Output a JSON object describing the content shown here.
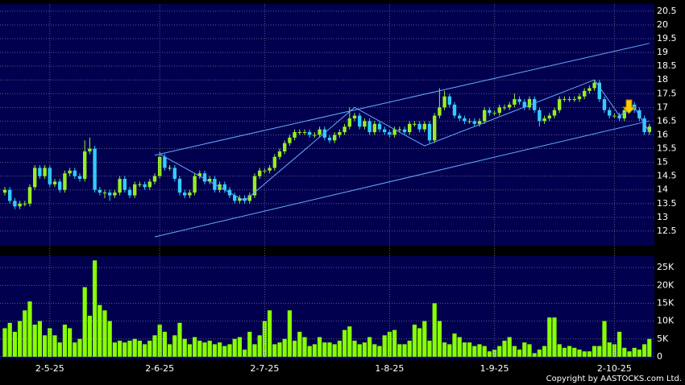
{
  "chart_data": [
    {
      "type": "candlestick",
      "up_color": "#99ee22",
      "down_color": "#33ccff",
      "line_color": "#66aaff",
      "ylim": [
        11.97,
        20.76
      ],
      "yticks": [
        12.5,
        13,
        13.5,
        14,
        14.5,
        15,
        15.5,
        16,
        16.5,
        17,
        17.5,
        18,
        18.5,
        19,
        19.5,
        20,
        20.5
      ],
      "grid": true,
      "open": [
        13.9,
        14.0,
        13.6,
        13.4,
        13.5,
        13.5,
        14.1,
        14.8,
        14.5,
        14.8,
        14.2,
        14.3,
        14.0,
        14.6,
        14.7,
        14.5,
        14.4,
        15.4,
        15.5,
        14.0,
        13.9,
        13.9,
        13.8,
        13.9,
        14.4,
        14.0,
        13.8,
        14.2,
        14.2,
        14.1,
        14.3,
        14.5,
        15.2,
        14.8,
        14.8,
        14.4,
        13.9,
        13.8,
        13.9,
        14.5,
        14.6,
        14.3,
        14.4,
        14.0,
        14.2,
        14.0,
        13.8,
        13.6,
        13.7,
        13.6,
        13.8,
        14.5,
        14.7,
        14.7,
        14.8,
        15.2,
        15.4,
        15.7,
        15.9,
        16.1,
        16.1,
        16.1,
        16.0,
        16.0,
        16.2,
        15.9,
        15.8,
        16.0,
        16.1,
        16.3,
        16.6,
        16.7,
        16.3,
        16.5,
        16.1,
        16.4,
        16.2,
        16.1,
        16.0,
        16.2,
        16.2,
        16.1,
        16.4,
        16.4,
        16.2,
        16.4,
        15.8,
        16.7,
        17.0,
        17.4,
        17.1,
        16.7,
        16.6,
        16.5,
        16.5,
        16.4,
        16.5,
        16.9,
        16.8,
        16.8,
        17.0,
        17.0,
        17.1,
        17.3,
        17.2,
        17.0,
        17.3,
        16.9,
        16.5,
        16.6,
        16.7,
        16.9,
        17.3,
        17.3,
        17.3,
        17.3,
        17.4,
        17.6,
        17.7,
        17.9,
        17.3,
        16.9,
        16.7,
        16.7,
        16.6,
        16.9,
        17.1,
        16.9,
        16.6,
        16.1
      ],
      "high": [
        14.1,
        14.1,
        13.7,
        13.6,
        13.6,
        14.2,
        14.9,
        14.9,
        14.9,
        14.9,
        14.4,
        14.4,
        14.7,
        14.8,
        14.8,
        14.6,
        15.8,
        15.9,
        15.6,
        14.1,
        14.0,
        14.0,
        14.0,
        14.5,
        14.5,
        14.1,
        14.3,
        14.3,
        14.3,
        14.4,
        14.6,
        15.4,
        15.3,
        14.9,
        14.9,
        14.5,
        14.0,
        14.0,
        14.6,
        14.7,
        14.7,
        14.5,
        14.5,
        14.3,
        14.3,
        14.1,
        13.9,
        13.8,
        13.8,
        13.9,
        14.6,
        14.8,
        14.8,
        14.9,
        15.3,
        15.5,
        15.8,
        16.0,
        16.2,
        16.2,
        16.2,
        16.2,
        16.1,
        16.3,
        16.3,
        16.0,
        16.1,
        16.2,
        16.4,
        17.0,
        16.8,
        16.8,
        16.6,
        16.6,
        16.5,
        16.5,
        16.3,
        16.2,
        16.3,
        16.3,
        16.3,
        16.5,
        16.5,
        16.5,
        16.5,
        16.5,
        16.8,
        17.7,
        17.6,
        17.5,
        17.2,
        16.8,
        16.7,
        16.6,
        16.6,
        16.6,
        17.0,
        17.0,
        16.9,
        17.1,
        17.1,
        17.2,
        17.5,
        17.4,
        17.3,
        17.4,
        17.4,
        17.0,
        16.7,
        16.8,
        17.0,
        17.4,
        17.4,
        17.4,
        17.4,
        17.5,
        17.7,
        17.8,
        18.0,
        18.0,
        17.4,
        17.0,
        16.8,
        16.8,
        17.0,
        17.2,
        17.2,
        17.0,
        16.7,
        16.4
      ],
      "low": [
        13.8,
        13.5,
        13.3,
        13.3,
        13.4,
        13.4,
        14.0,
        14.4,
        14.4,
        14.1,
        14.1,
        13.9,
        13.9,
        14.5,
        14.4,
        14.3,
        14.3,
        15.3,
        13.9,
        13.8,
        13.7,
        13.6,
        13.7,
        13.8,
        13.9,
        13.7,
        13.7,
        14.1,
        14.0,
        14.0,
        14.2,
        14.4,
        14.7,
        14.7,
        14.3,
        13.8,
        13.7,
        13.7,
        13.8,
        14.4,
        14.2,
        14.2,
        13.9,
        13.9,
        13.9,
        13.7,
        13.5,
        13.5,
        13.5,
        13.5,
        13.7,
        14.4,
        14.6,
        14.6,
        14.7,
        15.1,
        15.3,
        15.6,
        15.8,
        16.0,
        16.0,
        15.9,
        15.9,
        15.9,
        15.8,
        15.7,
        15.7,
        15.9,
        16.0,
        16.2,
        16.5,
        16.2,
        16.2,
        16.0,
        16.0,
        16.1,
        16.0,
        15.9,
        15.9,
        16.1,
        16.0,
        16.0,
        16.3,
        16.1,
        16.1,
        15.7,
        15.7,
        16.6,
        16.9,
        17.0,
        16.6,
        16.5,
        16.4,
        16.4,
        16.3,
        16.3,
        16.4,
        16.7,
        16.7,
        16.7,
        16.9,
        16.9,
        17.0,
        17.1,
        16.9,
        16.9,
        16.8,
        16.3,
        16.4,
        16.5,
        16.6,
        16.8,
        17.2,
        17.2,
        17.2,
        17.2,
        17.3,
        17.5,
        17.6,
        17.2,
        16.8,
        16.6,
        16.6,
        16.5,
        16.5,
        16.8,
        16.8,
        16.5,
        16.0,
        16.0
      ],
      "close": [
        14.0,
        13.6,
        13.4,
        13.5,
        13.5,
        14.1,
        14.8,
        14.5,
        14.8,
        14.2,
        14.3,
        14.0,
        14.6,
        14.7,
        14.5,
        14.4,
        15.4,
        15.5,
        14.0,
        13.9,
        13.9,
        13.8,
        13.9,
        14.4,
        14.0,
        13.8,
        14.2,
        14.2,
        14.1,
        14.3,
        14.5,
        15.2,
        14.8,
        14.8,
        14.4,
        13.9,
        13.8,
        13.9,
        14.5,
        14.6,
        14.3,
        14.4,
        14.0,
        14.2,
        14.0,
        13.8,
        13.6,
        13.7,
        13.6,
        13.8,
        14.5,
        14.7,
        14.7,
        14.8,
        15.2,
        15.4,
        15.7,
        15.9,
        16.1,
        16.1,
        16.1,
        16.0,
        16.0,
        16.2,
        15.9,
        15.8,
        16.0,
        16.1,
        16.3,
        16.6,
        16.7,
        16.3,
        16.5,
        16.1,
        16.4,
        16.2,
        16.1,
        16.0,
        16.2,
        16.2,
        16.1,
        16.4,
        16.4,
        16.2,
        16.4,
        15.8,
        16.7,
        17.0,
        17.4,
        17.1,
        16.7,
        16.6,
        16.5,
        16.5,
        16.4,
        16.5,
        16.9,
        16.8,
        16.8,
        17.0,
        17.0,
        17.1,
        17.3,
        17.2,
        17.0,
        17.3,
        16.9,
        16.5,
        16.6,
        16.7,
        16.9,
        17.3,
        17.3,
        17.3,
        17.3,
        17.4,
        17.6,
        17.7,
        17.9,
        17.3,
        16.9,
        16.7,
        16.7,
        16.6,
        16.9,
        17.1,
        16.9,
        16.6,
        16.1,
        16.3
      ],
      "trend_lines": [
        {
          "x": [
            30,
            129
          ],
          "y": [
            15.26,
            19.33
          ]
        },
        {
          "x": [
            30,
            129
          ],
          "y": [
            12.29,
            16.51
          ]
        },
        {
          "x": [
            31,
            48,
            70,
            84,
            118,
            123,
            126,
            129
          ],
          "y": [
            15.3,
            13.6,
            17.0,
            15.6,
            18.0,
            16.7,
            17.0,
            16.1
          ]
        }
      ]
    },
    {
      "type": "bar",
      "color": "#88ff00",
      "ylim": [
        -700,
        28200
      ],
      "yticks": [
        0,
        {
          "value": 5000,
          "label": "5K"
        },
        {
          "value": 10000,
          "label": "10K"
        },
        {
          "value": 15000,
          "label": "15K"
        },
        {
          "value": 20000,
          "label": "20K"
        },
        {
          "value": 25000,
          "label": "25K"
        }
      ],
      "grid": true,
      "categories": [
        null,
        null,
        null,
        null,
        null,
        null,
        null,
        null,
        null,
        "2-5-25",
        null,
        null,
        null,
        null,
        null,
        null,
        null,
        null,
        null,
        null,
        null,
        null,
        null,
        null,
        null,
        null,
        null,
        null,
        null,
        null,
        null,
        "2-6-25",
        null,
        null,
        null,
        null,
        null,
        null,
        null,
        null,
        null,
        null,
        null,
        null,
        null,
        null,
        null,
        null,
        null,
        null,
        null,
        null,
        "2-7-25",
        null,
        null,
        null,
        null,
        null,
        null,
        null,
        null,
        null,
        null,
        null,
        null,
        null,
        null,
        null,
        null,
        null,
        null,
        null,
        null,
        null,
        null,
        null,
        null,
        "1-8-25",
        null,
        null,
        null,
        null,
        null,
        null,
        null,
        null,
        null,
        null,
        null,
        null,
        null,
        null,
        null,
        null,
        null,
        null,
        null,
        null,
        "1-9-25",
        null,
        null,
        null,
        null,
        null,
        null,
        null,
        null,
        null,
        null,
        null,
        null,
        null,
        null,
        null,
        null,
        null,
        null,
        null,
        null,
        null,
        null,
        null,
        "2-10-25",
        null,
        null,
        null,
        null,
        null,
        null,
        null
      ],
      "values": [
        8000,
        9500,
        7000,
        10000,
        13000,
        15500,
        9000,
        10000,
        6000,
        8000,
        6000,
        4000,
        9000,
        8000,
        4000,
        5000,
        19500,
        11500,
        27000,
        14500,
        13000,
        10000,
        4000,
        4500,
        4000,
        4500,
        5000,
        4500,
        3500,
        4500,
        6000,
        9000,
        7000,
        3500,
        6000,
        9500,
        5000,
        3500,
        5500,
        4500,
        4000,
        4500,
        3500,
        4000,
        3000,
        3500,
        5000,
        5500,
        2000,
        7000,
        3500,
        6000,
        10000,
        13000,
        3500,
        4000,
        5000,
        13000,
        4500,
        7000,
        5500,
        3000,
        3500,
        5500,
        4000,
        4000,
        3500,
        4500,
        7500,
        8500,
        4500,
        3500,
        4000,
        5500,
        3500,
        3000,
        6000,
        7000,
        7500,
        3500,
        3500,
        4500,
        9000,
        8000,
        10000,
        4500,
        15000,
        10000,
        4000,
        3500,
        6500,
        5500,
        4000,
        4000,
        3000,
        3500,
        3000,
        1500,
        2000,
        3000,
        4500,
        5500,
        3000,
        2000,
        4000,
        3500,
        1000,
        2000,
        3000,
        11000,
        11000,
        3500,
        2500,
        3000,
        2500,
        2000,
        1500,
        1500,
        3000,
        3000,
        10000,
        4000,
        3500,
        7000,
        2500,
        1500,
        2500,
        2000,
        3500,
        5000
      ]
    }
  ],
  "copyright": "Copyright by AASTOCKS.com Ltd."
}
